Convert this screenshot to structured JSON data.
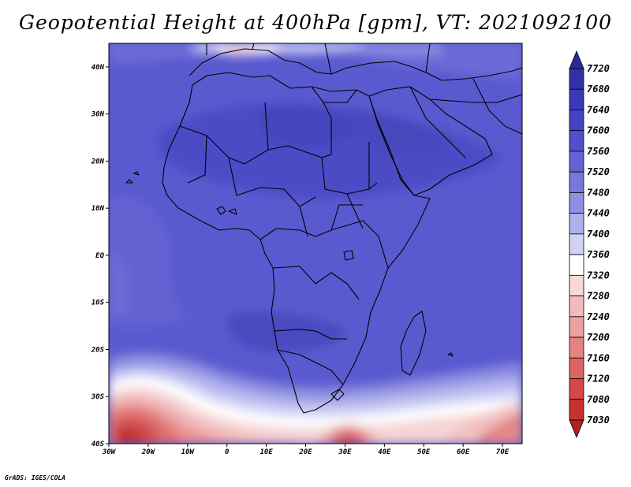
{
  "title": "Geopotential Height at 400hPa [gpm], VT: 2021092100",
  "footer": "GrADS: IGES/COLA",
  "map": {
    "lon_range": [
      -30,
      75
    ],
    "lat_range": [
      -40,
      45
    ],
    "lon_ticks": [
      {
        "lon": -30,
        "label": "30W"
      },
      {
        "lon": -20,
        "label": "20W"
      },
      {
        "lon": -10,
        "label": "10W"
      },
      {
        "lon": 0,
        "label": "0"
      },
      {
        "lon": 10,
        "label": "10E"
      },
      {
        "lon": 20,
        "label": "20E"
      },
      {
        "lon": 30,
        "label": "30E"
      },
      {
        "lon": 40,
        "label": "40E"
      },
      {
        "lon": 50,
        "label": "50E"
      },
      {
        "lon": 60,
        "label": "60E"
      },
      {
        "lon": 70,
        "label": "70E"
      }
    ],
    "lat_ticks": [
      {
        "lat": 40,
        "label": "40N"
      },
      {
        "lat": 30,
        "label": "30N"
      },
      {
        "lat": 20,
        "label": "20N"
      },
      {
        "lat": 10,
        "label": "10N"
      },
      {
        "lat": 0,
        "label": "EQ"
      },
      {
        "lat": -10,
        "label": "10S"
      },
      {
        "lat": -20,
        "label": "20S"
      },
      {
        "lat": -30,
        "label": "30S"
      },
      {
        "lat": -40,
        "label": "40S"
      }
    ]
  },
  "colorbar": {
    "levels": [
      "7720",
      "7680",
      "7640",
      "7600",
      "7560",
      "7520",
      "7480",
      "7440",
      "7400",
      "7360",
      "7320",
      "7280",
      "7240",
      "7200",
      "7160",
      "7120",
      "7080",
      "7030"
    ],
    "colors": [
      "#2a2a98",
      "#3131a8",
      "#3a3ab8",
      "#4343c4",
      "#5050cc",
      "#6363d4",
      "#7878da",
      "#9090e2",
      "#b0b0ec",
      "#d2d2f6",
      "#ffffff",
      "#f8d8d8",
      "#f2bcbc",
      "#eca0a0",
      "#e68282",
      "#de6464",
      "#d44848",
      "#c63232",
      "#b22020"
    ]
  }
}
